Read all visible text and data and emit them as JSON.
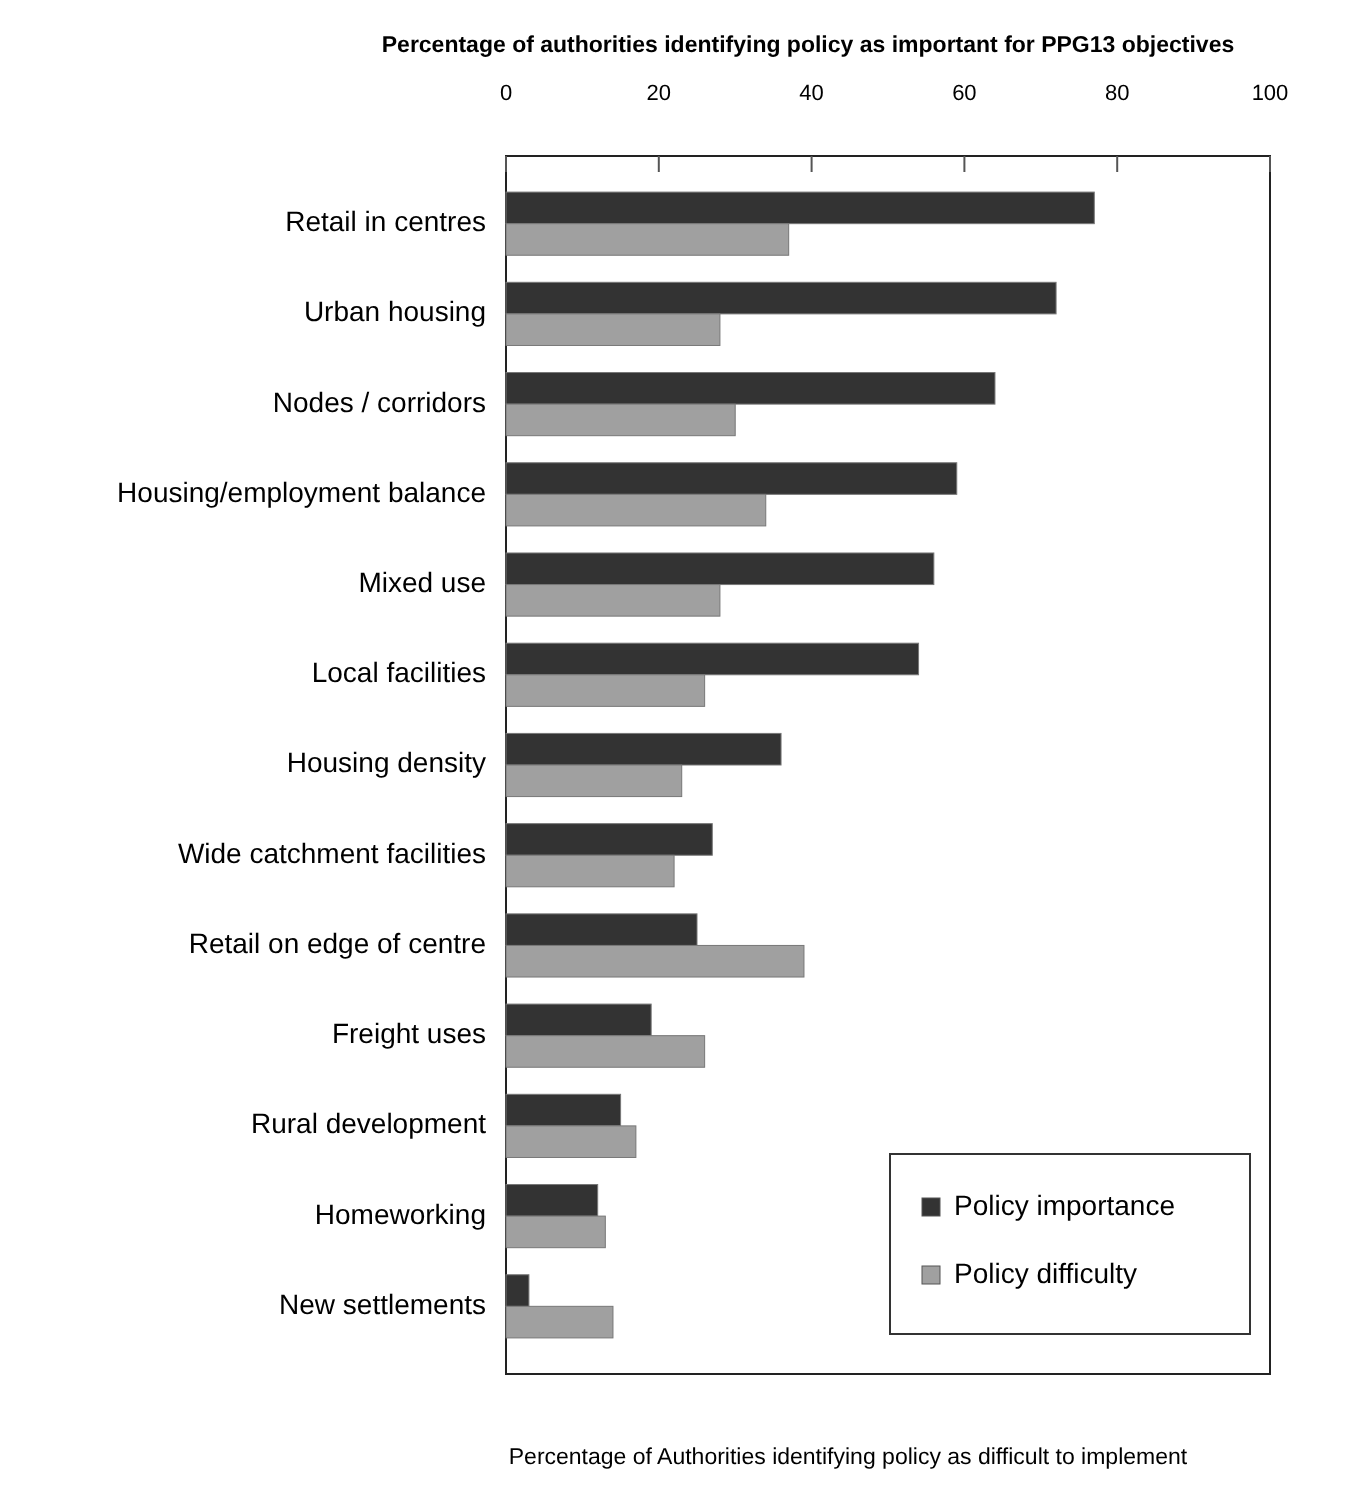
{
  "chart_data": {
    "type": "bar",
    "orientation": "horizontal",
    "title": "Percentage of authorities identifying policy as important for PPG13 objectives",
    "xlabel": "Percentage of Authorities identifying policy as difficult to implement",
    "categories": [
      "Retail in centres",
      "Urban housing",
      "Nodes / corridors",
      "Housing/employment balance",
      "Mixed use",
      "Local facilities",
      "Housing density",
      "Wide catchment facilities",
      "Retail on edge of centre",
      "Freight uses",
      "Rural development",
      "Homeworking",
      "New settlements"
    ],
    "series": [
      {
        "name": "Policy importance",
        "color": "#333333",
        "values": [
          77,
          72,
          64,
          59,
          56,
          54,
          36,
          27,
          25,
          19,
          15,
          12,
          3
        ]
      },
      {
        "name": "Policy difficulty",
        "color": "#a0a0a0",
        "values": [
          37,
          28,
          30,
          34,
          28,
          26,
          23,
          22,
          39,
          26,
          17,
          13,
          14
        ]
      }
    ],
    "xlim": [
      0,
      100
    ],
    "xticks": [
      0,
      20,
      40,
      60,
      80,
      100
    ],
    "grid": false,
    "legend": "bottom right"
  }
}
